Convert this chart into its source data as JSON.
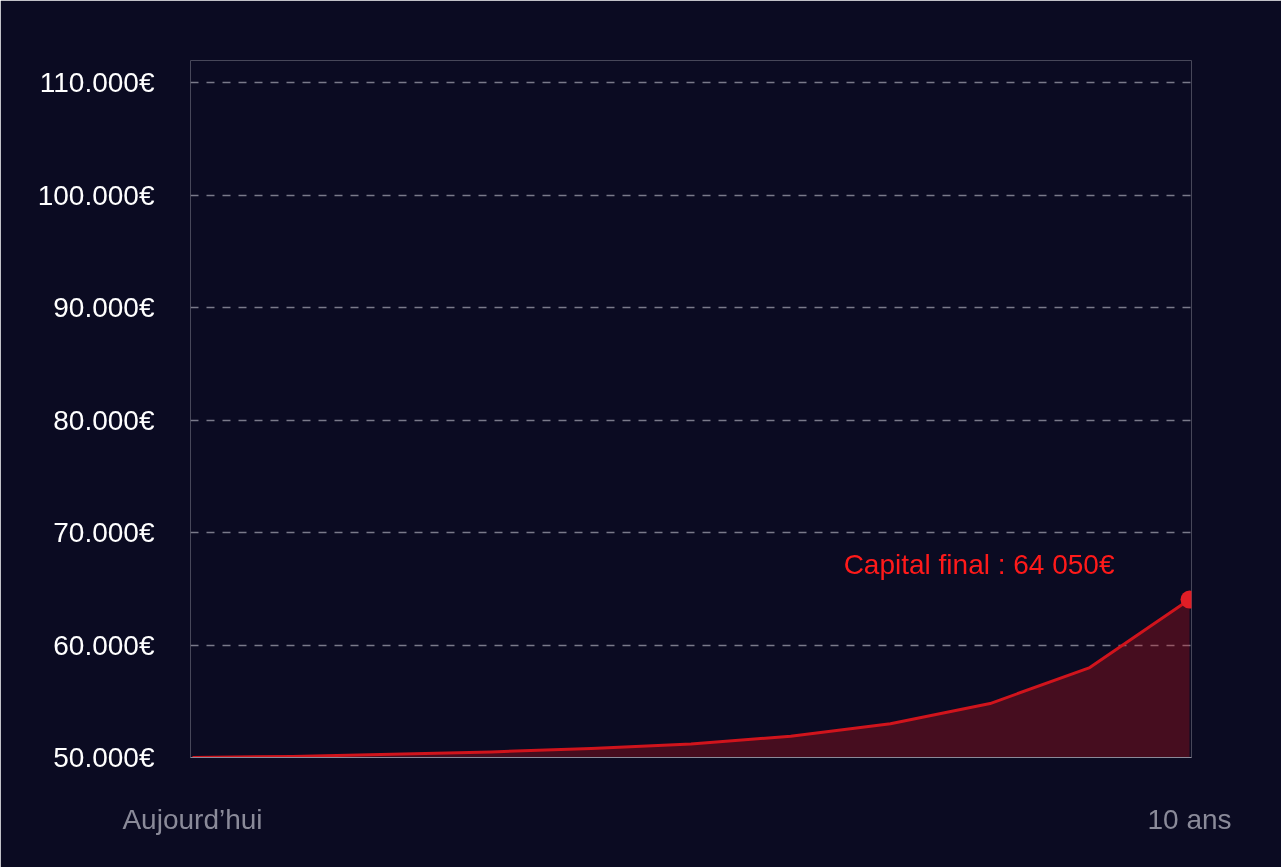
{
  "chart_data": {
    "type": "area",
    "categories": [
      "Aujourd’hui",
      null,
      null,
      null,
      null,
      null,
      null,
      null,
      null,
      null,
      "10 ans"
    ],
    "ylim": [
      50000,
      112000
    ],
    "yticks": [
      {
        "value": 50000,
        "label": "50.000€"
      },
      {
        "value": 60000,
        "label": "60.000€"
      },
      {
        "value": 70000,
        "label": "70.000€"
      },
      {
        "value": 80000,
        "label": "80.000€"
      },
      {
        "value": 90000,
        "label": "90.000€"
      },
      {
        "value": 100000,
        "label": "100.000€"
      },
      {
        "value": 110000,
        "label": "110.000€"
      }
    ],
    "grid": "y",
    "line_style": "solid",
    "series": [
      {
        "color": "#d0141c",
        "values": [
          50000,
          50100,
          50300,
          50500,
          50800,
          51200,
          51900,
          53000,
          54800,
          58000,
          64050
        ]
      },
      {
        "type": "scatter",
        "color": "#e01e26",
        "values": [
          null,
          null,
          null,
          null,
          null,
          null,
          null,
          null,
          null,
          null,
          64050
        ]
      }
    ],
    "annotations": [
      "Capital final : 64 050€"
    ]
  }
}
